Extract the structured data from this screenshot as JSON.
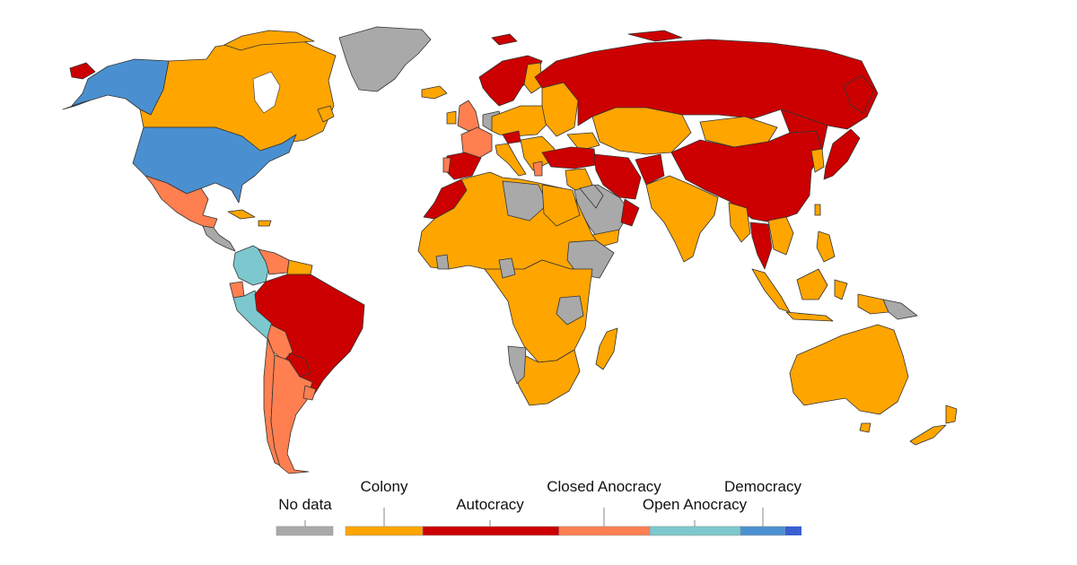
{
  "legend": {
    "no_data_label": "No data",
    "categories": [
      {
        "label": "Colony",
        "color": "#FFA500"
      },
      {
        "label": "Autocracy",
        "color": "#CC0000"
      },
      {
        "label": "Closed Anocracy",
        "color": "#FF7F50"
      },
      {
        "label": "Open Anocracy",
        "color": "#7CC8CE"
      },
      {
        "label": "Democracy",
        "color": "#4A90D0"
      }
    ],
    "no_data_color": "#A9A9A9",
    "democracy_end_color": "#3A5FD0"
  },
  "colors": {
    "colony": "#FFA500",
    "autocracy": "#CC0000",
    "closed_anocracy": "#FF7F50",
    "open_anocracy": "#7CC8CE",
    "democracy": "#4A90D0",
    "no_data": "#A9A9A9"
  }
}
